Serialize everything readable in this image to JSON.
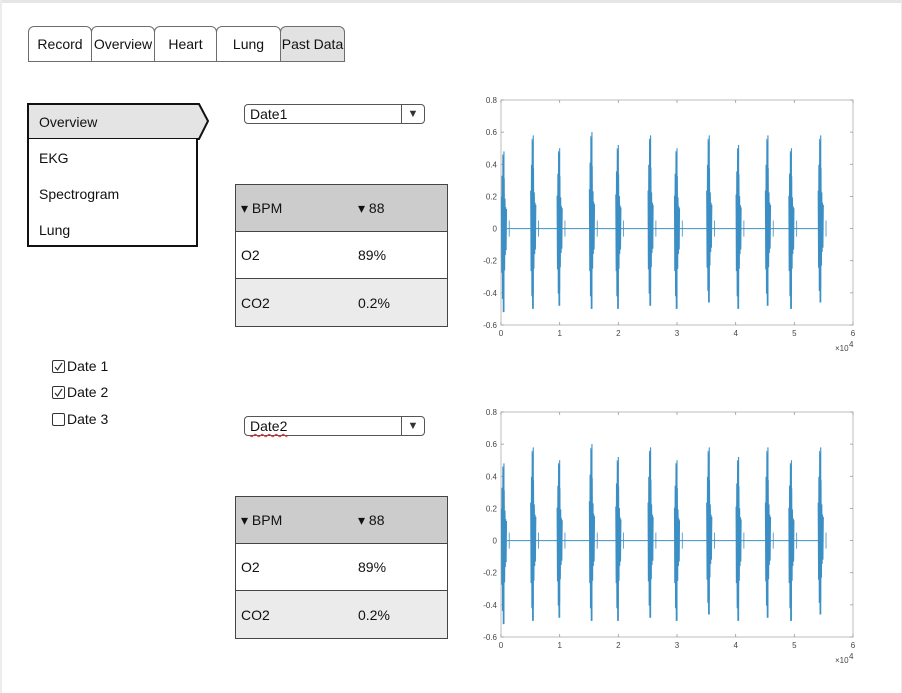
{
  "tabs": [
    {
      "label": "Record"
    },
    {
      "label": "Overview"
    },
    {
      "label": "Heart"
    },
    {
      "label": "Lung"
    },
    {
      "label": "Past Data",
      "active": true
    }
  ],
  "side_menu": {
    "items": [
      {
        "label": "Overview",
        "selected": true
      },
      {
        "label": "EKG"
      },
      {
        "label": "Spectrogram"
      },
      {
        "label": "Lung"
      }
    ]
  },
  "date_checkboxes": [
    {
      "label": "Date 1",
      "checked": true
    },
    {
      "label": "Date 2",
      "checked": true
    },
    {
      "label": "Date 3",
      "checked": false
    }
  ],
  "panels": [
    {
      "dropdown_value": "Date1",
      "table": {
        "header": {
          "left": "▾ BPM",
          "right": "▾ 88"
        },
        "rows": [
          {
            "label": "O2",
            "value": "89%"
          },
          {
            "label": "CO2",
            "value": "0.2%"
          }
        ]
      }
    },
    {
      "dropdown_value": "Date2",
      "table": {
        "header": {
          "left": "▾ BPM",
          "right": "▾ 88"
        },
        "rows": [
          {
            "label": "O2",
            "value": "89%"
          },
          {
            "label": "CO2",
            "value": "0.2%"
          }
        ]
      }
    }
  ],
  "icons": {
    "dropdown_arrow": "▼",
    "check": "check-icon"
  },
  "colors": {
    "signal": "#3b8fc4",
    "tab_active": "#e2e2e2",
    "table_header": "#cccccc"
  },
  "chart_data": [
    {
      "type": "line",
      "xlim": [
        0,
        6
      ],
      "ylim": [
        -0.6,
        0.8
      ],
      "x_ticks": [
        "0",
        "1",
        "2",
        "3",
        "4",
        "5",
        "6"
      ],
      "y_ticks": [
        "0.8",
        "0.6",
        "0.4",
        "0.2",
        "0",
        "-0.2",
        "-0.4",
        "-0.6"
      ],
      "x_exponent": "×10",
      "x_exponent_power": "4",
      "series": [
        {
          "description": "heart sound signal (bursts)",
          "beat_positions_x1e4": [
            0.05,
            0.55,
            1.0,
            1.55,
            2.0,
            2.55,
            3.0,
            3.55,
            4.05,
            4.55,
            4.95,
            5.45
          ],
          "peak_values": [
            0.48,
            0.58,
            0.5,
            0.6,
            0.52,
            0.58,
            0.5,
            0.58,
            0.52,
            0.58,
            0.5,
            0.58
          ],
          "trough_values": [
            -0.52,
            -0.5,
            -0.48,
            -0.5,
            -0.5,
            -0.48,
            -0.5,
            -0.46,
            -0.5,
            -0.48,
            -0.5,
            -0.46
          ],
          "x_end": 5.5
        }
      ]
    },
    {
      "type": "line",
      "xlim": [
        0,
        6
      ],
      "ylim": [
        -0.6,
        0.8
      ],
      "x_ticks": [
        "0",
        "1",
        "2",
        "3",
        "4",
        "5",
        "6"
      ],
      "y_ticks": [
        "0.8",
        "0.6",
        "0.4",
        "0.2",
        "0",
        "-0.2",
        "-0.4",
        "-0.6"
      ],
      "x_exponent": "×10",
      "x_exponent_power": "4",
      "series": [
        {
          "description": "heart sound signal (bursts)",
          "beat_positions_x1e4": [
            0.05,
            0.55,
            1.0,
            1.55,
            2.0,
            2.55,
            3.0,
            3.55,
            4.05,
            4.55,
            4.95,
            5.45
          ],
          "peak_values": [
            0.48,
            0.58,
            0.5,
            0.6,
            0.52,
            0.58,
            0.5,
            0.58,
            0.52,
            0.58,
            0.5,
            0.58
          ],
          "trough_values": [
            -0.52,
            -0.5,
            -0.48,
            -0.5,
            -0.5,
            -0.48,
            -0.5,
            -0.46,
            -0.5,
            -0.48,
            -0.5,
            -0.46
          ],
          "x_end": 5.5
        }
      ]
    }
  ]
}
